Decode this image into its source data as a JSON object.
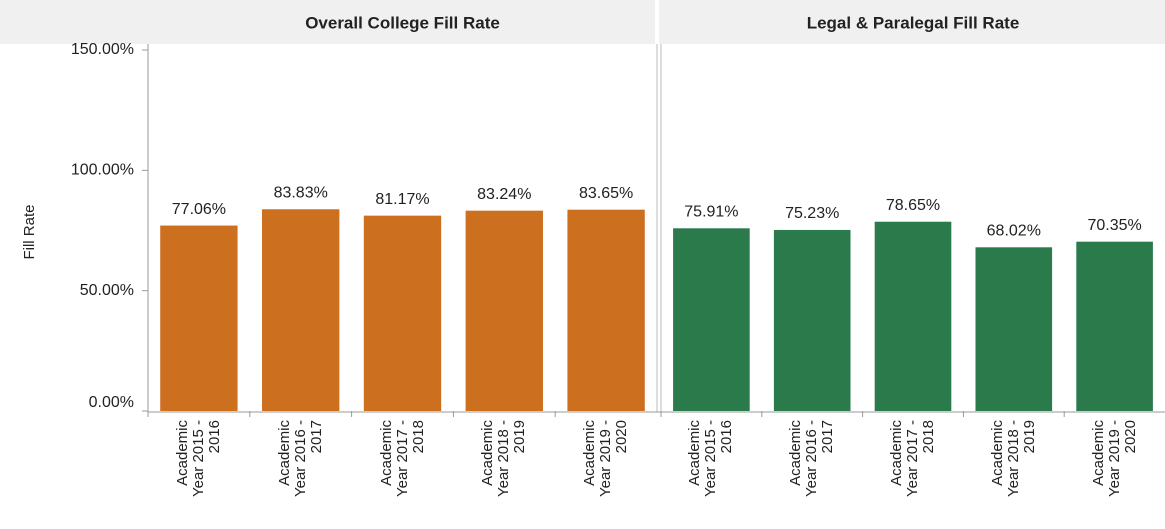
{
  "chart_data": [
    {
      "type": "bar",
      "title": "Overall College Fill Rate",
      "y_label": "Fill Rate",
      "categories": [
        "Academic Year 2015 - 2016",
        "Academic Year 2016 - 2017",
        "Academic Year 2017 - 2018",
        "Academic Year 2018 - 2019",
        "Academic Year 2019 - 2020"
      ],
      "values": [
        77.06,
        83.83,
        81.17,
        83.24,
        83.65
      ],
      "value_labels": [
        "77.06%",
        "83.83%",
        "81.17%",
        "83.24%",
        "83.65%"
      ],
      "color": "#cc7020",
      "ylim": [
        0,
        150
      ],
      "yticks": [
        {
          "value": 0,
          "label": "0.00%"
        },
        {
          "value": 50,
          "label": "50.00%"
        },
        {
          "value": 100,
          "label": "100.00%"
        },
        {
          "value": 150,
          "label": "150.00%"
        }
      ]
    },
    {
      "type": "bar",
      "title": "Legal & Paralegal Fill Rate",
      "categories": [
        "Academic Year 2015 - 2016",
        "Academic Year 2016 - 2017",
        "Academic Year 2017 - 2018",
        "Academic Year 2018 - 2019",
        "Academic Year 2019 - 2020"
      ],
      "values": [
        75.91,
        75.23,
        78.65,
        68.02,
        70.35
      ],
      "value_labels": [
        "75.91%",
        "75.23%",
        "78.65%",
        "68.02%",
        "70.35%"
      ],
      "color": "#2a7a4c",
      "ylim": [
        0,
        150
      ]
    }
  ]
}
